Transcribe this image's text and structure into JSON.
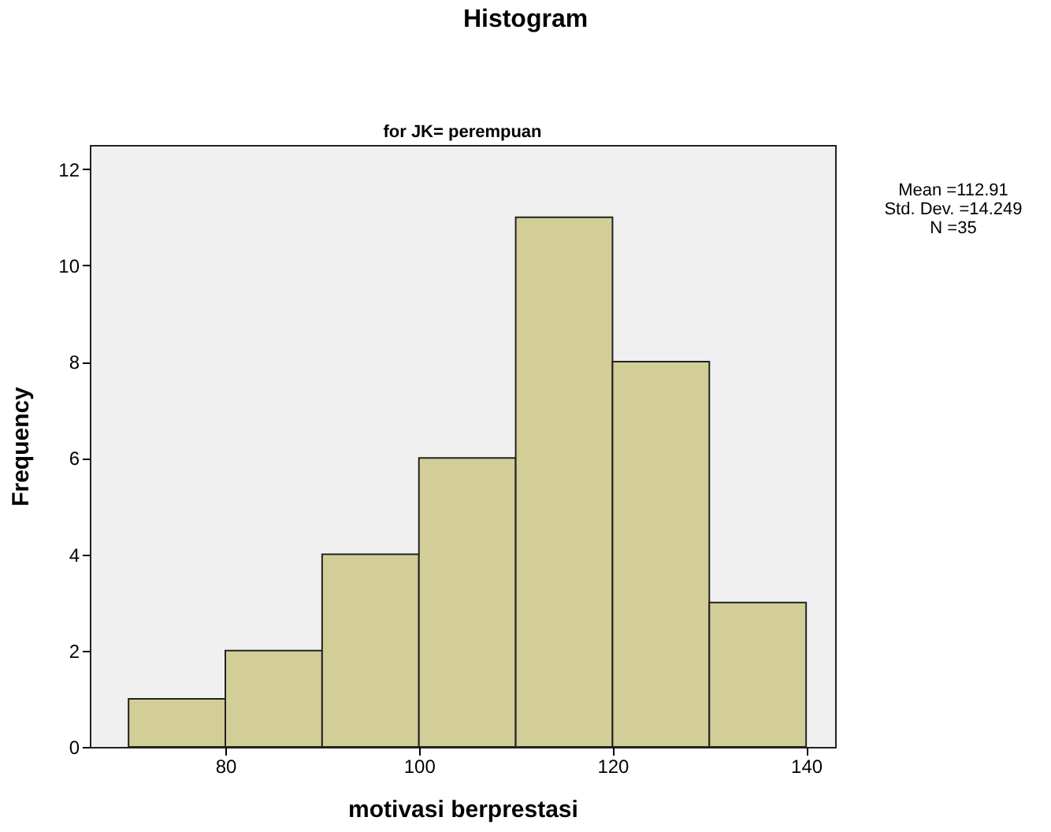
{
  "chart_data": {
    "type": "histogram",
    "title": "Histogram",
    "subtitle": "for JK= perempuan",
    "xlabel": "motivasi berprestasi",
    "ylabel": "Frequency",
    "bins": [
      70,
      80,
      90,
      100,
      110,
      120,
      130,
      140
    ],
    "values": [
      1,
      2,
      4,
      6,
      11,
      8,
      3
    ],
    "color": "#d3ce97",
    "xlim": [
      66,
      143
    ],
    "xticks": [
      80,
      100,
      120,
      140
    ],
    "ylim": [
      0,
      12.5
    ],
    "yticks": [
      0,
      2,
      4,
      6,
      8,
      10,
      12
    ],
    "grid": false,
    "annotations": [
      "Mean =112.91",
      "Std. Dev. =14.249",
      "N =35"
    ]
  }
}
